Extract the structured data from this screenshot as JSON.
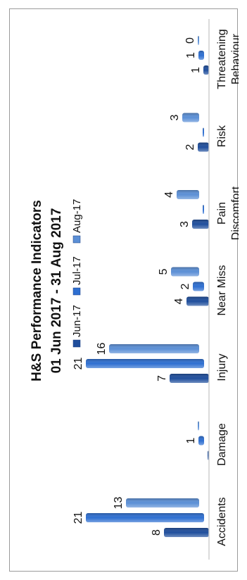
{
  "chart_data": {
    "type": "bar",
    "title": "H&S Performance Indicators",
    "subtitle": "01 Jun 2017 - 31 Aug 2017",
    "categories": [
      "Accidents",
      "Damage",
      "Injury",
      "Near Miss",
      "Pain Discomfort",
      "Risk",
      "Threatening Behaviour"
    ],
    "category_lines": [
      [
        "Accidents"
      ],
      [
        "Damage"
      ],
      [
        "Injury"
      ],
      [
        "Near Miss"
      ],
      [
        "Pain",
        "Discomfort"
      ],
      [
        "Risk"
      ],
      [
        "Threatening",
        "Behaviour"
      ]
    ],
    "series": [
      {
        "name": "Jun-17",
        "values": [
          8,
          0,
          7,
          4,
          3,
          2,
          1
        ],
        "color": "#1f4e9c"
      },
      {
        "name": "Jul-17",
        "values": [
          21,
          1,
          21,
          2,
          0,
          0,
          1
        ],
        "color": "#2e6fd1"
      },
      {
        "name": "Aug-17",
        "values": [
          13,
          0,
          16,
          5,
          4,
          3,
          0
        ],
        "color": "#5b8fd6"
      }
    ],
    "data_labels": [
      [
        "8",
        "21",
        "13"
      ],
      [
        "",
        "1",
        ""
      ],
      [
        "7",
        "21",
        "16"
      ],
      [
        "4",
        "2",
        "5"
      ],
      [
        "3",
        "",
        "4"
      ],
      [
        "2",
        "",
        "3"
      ],
      [
        "1",
        "1",
        "0"
      ]
    ],
    "ylim": [
      0,
      21
    ],
    "grid": false,
    "legend_position": "top",
    "orientation": "rotated 90 degrees counter-clockwise"
  }
}
